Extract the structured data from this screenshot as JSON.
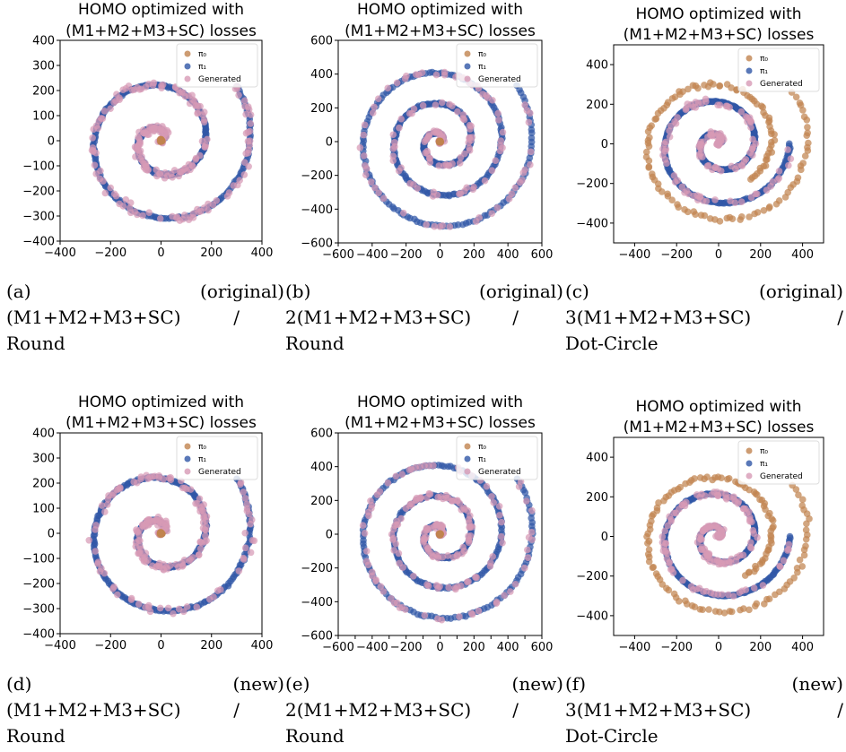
{
  "colors": {
    "pi0": "#c1834f",
    "pi1": "#2f56a6",
    "generated": "#d79ab5"
  },
  "legend_labels": [
    "π₀",
    "π₁",
    "Generated"
  ],
  "chart_data": [
    {
      "type": "scatter",
      "title": "HOMO optimized with (M1+M2+M3+SC) losses",
      "title_lines": [
        "HOMO optimized with",
        "(M1+M2+M3+SC) losses"
      ],
      "xlim": [
        -400,
        400
      ],
      "ylim": [
        -400,
        400
      ],
      "xticks": [
        -400,
        -200,
        0,
        200,
        400
      ],
      "yticks": [
        -400,
        -300,
        -200,
        -100,
        0,
        100,
        200,
        300,
        400
      ],
      "legend": "top-right",
      "series": [
        {
          "name": "π₀",
          "shape": "center-cluster",
          "center": [
            0,
            0
          ],
          "spread": 6
        },
        {
          "name": "π₁",
          "shape": "spiral",
          "scale": 1.0,
          "turns": 2.1,
          "r_end": 370
        },
        {
          "name": "Generated",
          "shape": "spiral-follow",
          "coverage": 0.95
        }
      ],
      "caption": {
        "label": "(a)",
        "tag": "(original)",
        "line2": "(M1+M2+M3+SC)  /",
        "line3": "Round"
      }
    },
    {
      "type": "scatter",
      "title": "HOMO optimized with (M1+M2+M3+SC) losses",
      "title_lines": [
        "HOMO optimized with",
        "(M1+M2+M3+SC) losses"
      ],
      "xlim": [
        -600,
        600
      ],
      "ylim": [
        -600,
        600
      ],
      "xticks": [
        -600,
        -400,
        -200,
        0,
        200,
        400,
        600
      ],
      "yticks": [
        -600,
        -400,
        -200,
        0,
        200,
        400,
        600
      ],
      "legend": "top-right",
      "series": [
        {
          "name": "π₀",
          "shape": "center-cluster",
          "center": [
            0,
            0
          ],
          "spread": 6
        },
        {
          "name": "π₁",
          "shape": "spiral",
          "turns": 3.1,
          "r_end": 560
        },
        {
          "name": "Generated",
          "shape": "spiral-follow",
          "coverage": 0.7
        }
      ],
      "caption": {
        "label": "(b)",
        "tag": "(original)",
        "line2": "2(M1+M2+M3+SC)  /",
        "line3": "Round"
      }
    },
    {
      "type": "scatter",
      "title": "HOMO optimized with (M1+M2+M3+SC) losses",
      "title_lines": [
        "HOMO optimized with",
        "(M1+M2+M3+SC) losses"
      ],
      "xlim": [
        -500,
        500
      ],
      "ylim": [
        -500,
        500
      ],
      "xticks": [
        -400,
        -200,
        0,
        200,
        400
      ],
      "yticks": [
        -400,
        -200,
        0,
        200,
        400
      ],
      "legend": "top-right",
      "series": [
        {
          "name": "π₀",
          "shape": "spiral-outer",
          "turns": 2.6,
          "r_end": 440
        },
        {
          "name": "π₁",
          "shape": "spiral",
          "turns": 2.0,
          "r_end": 340
        },
        {
          "name": "Generated",
          "shape": "spiral-follow",
          "coverage": 0.6
        }
      ],
      "caption": {
        "label": "(c)",
        "tag": "(original)",
        "line2": "3(M1+M2+M3+SC)  /",
        "line3": "Dot-Circle"
      }
    },
    {
      "type": "scatter",
      "title": "HOMO optimized with (M1+M2+M3+SC) losses",
      "title_lines": [
        "HOMO optimized with",
        "(M1+M2+M3+SC) losses"
      ],
      "xlim": [
        -400,
        400
      ],
      "ylim": [
        -400,
        400
      ],
      "xticks": [
        -400,
        -200,
        0,
        200,
        400
      ],
      "yticks": [
        -400,
        -300,
        -200,
        -100,
        0,
        100,
        200,
        300,
        400
      ],
      "legend": "top-right",
      "series": [
        {
          "name": "π₀",
          "shape": "center-cluster",
          "center": [
            0,
            0
          ],
          "spread": 6
        },
        {
          "name": "π₁",
          "shape": "spiral",
          "turns": 2.1,
          "r_end": 370
        },
        {
          "name": "Generated",
          "shape": "spiral-follow",
          "coverage": 0.8
        }
      ],
      "caption": {
        "label": "(d)",
        "tag": "(new)",
        "line2": "(M1+M2+M3+SC)  /",
        "line3": "Round"
      }
    },
    {
      "type": "scatter",
      "title": "HOMO optimized with (M1+M2+M3+SC) losses",
      "title_lines": [
        "HOMO optimized with",
        "(M1+M2+M3+SC) losses"
      ],
      "xlim": [
        -600,
        600
      ],
      "ylim": [
        -600,
        600
      ],
      "xticks": [
        -600,
        -500,
        -400,
        -300,
        -200,
        -100,
        0,
        100,
        200,
        300,
        400,
        500,
        600
      ],
      "xtick_labels": [
        "-600",
        "-400",
        "-200",
        "0",
        "200",
        "400",
        "600"
      ],
      "yticks": [
        -600,
        -400,
        -200,
        0,
        200,
        400,
        600
      ],
      "legend": "top-right",
      "series": [
        {
          "name": "π₀",
          "shape": "center-cluster",
          "center": [
            0,
            0
          ],
          "spread": 6
        },
        {
          "name": "π₁",
          "shape": "spiral",
          "turns": 3.1,
          "r_end": 560
        },
        {
          "name": "Generated",
          "shape": "spiral-follow",
          "coverage": 0.75
        }
      ],
      "caption": {
        "label": "(e)",
        "tag": "(new)",
        "line2": "2(M1+M2+M3+SC)  /",
        "line3": "Round"
      }
    },
    {
      "type": "scatter",
      "title": "HOMO optimized with (M1+M2+M3+SC) losses",
      "title_lines": [
        "HOMO optimized with",
        "(M1+M2+M3+SC) losses"
      ],
      "xlim": [
        -500,
        500
      ],
      "ylim": [
        -500,
        500
      ],
      "xticks": [
        -400,
        -200,
        0,
        200,
        400
      ],
      "yticks": [
        -400,
        -200,
        0,
        200,
        400
      ],
      "legend": "top-right",
      "series": [
        {
          "name": "π₀",
          "shape": "spiral-outer",
          "turns": 2.6,
          "r_end": 440
        },
        {
          "name": "π₁",
          "shape": "spiral",
          "turns": 2.0,
          "r_end": 340
        },
        {
          "name": "Generated",
          "shape": "spiral-follow",
          "coverage": 0.65
        }
      ],
      "caption": {
        "label": "(f)",
        "tag": "(new)",
        "line2": "3(M1+M2+M3+SC)  /",
        "line3": "Dot-Circle"
      }
    }
  ]
}
